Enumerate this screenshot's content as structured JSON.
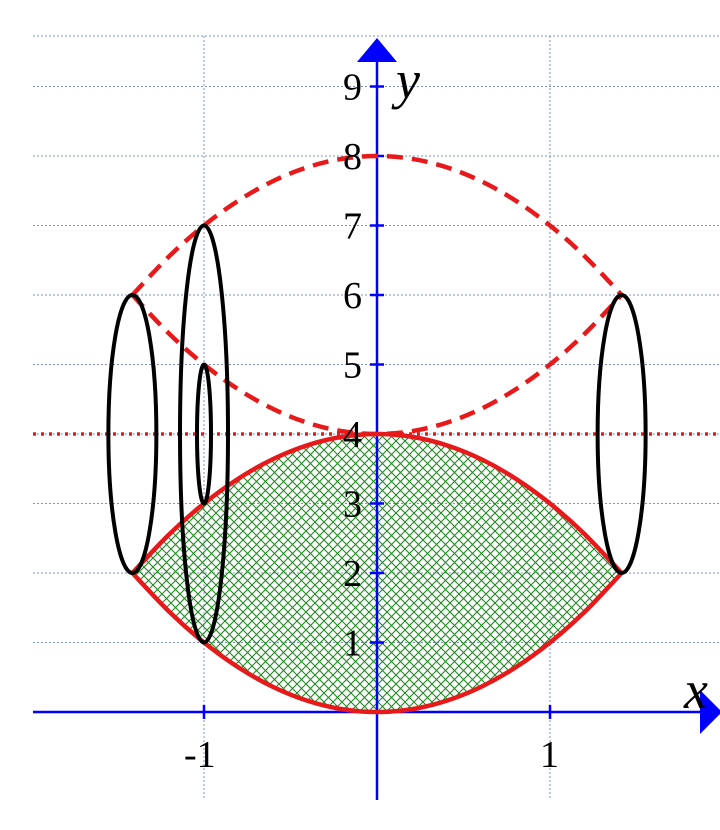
{
  "chart_data": {
    "type": "line",
    "xlabel": "x",
    "ylabel": "y",
    "xlim": [
      -2,
      2
    ],
    "ylim": [
      0,
      10
    ],
    "x_ticks": [
      "-1",
      "1"
    ],
    "y_ticks": [
      "1",
      "2",
      "3",
      "4",
      "5",
      "6",
      "7",
      "8",
      "9"
    ],
    "grid": true,
    "series": [
      {
        "role": "upper-boundary",
        "style": "solid",
        "color": "#e8191b",
        "x": [
          -1.414,
          -1.2,
          -1,
          -0.8,
          -0.6,
          -0.4,
          -0.2,
          0,
          0.2,
          0.4,
          0.6,
          0.8,
          1,
          1.2,
          1.414
        ],
        "y": [
          2,
          2.56,
          3,
          3.36,
          3.64,
          3.84,
          3.96,
          4,
          3.96,
          3.84,
          3.64,
          3.36,
          3,
          2.56,
          2
        ]
      },
      {
        "role": "lower-boundary",
        "style": "solid",
        "color": "#e8191b",
        "x": [
          -1.414,
          -1.2,
          -1,
          -0.8,
          -0.6,
          -0.4,
          -0.2,
          0,
          0.2,
          0.4,
          0.6,
          0.8,
          1,
          1.2,
          1.414
        ],
        "y": [
          2,
          1.44,
          1,
          0.64,
          0.36,
          0.16,
          0.04,
          0,
          0.04,
          0.16,
          0.36,
          0.64,
          1,
          1.44,
          2
        ]
      },
      {
        "role": "reflected-upper",
        "style": "dashed",
        "color": "#e8191b",
        "x": [
          -1.414,
          -1.2,
          -1,
          -0.8,
          -0.6,
          -0.4,
          -0.2,
          0,
          0.2,
          0.4,
          0.6,
          0.8,
          1,
          1.2,
          1.414
        ],
        "y": [
          6,
          6.56,
          7,
          7.36,
          7.64,
          7.84,
          7.96,
          8,
          7.96,
          7.84,
          7.64,
          7.36,
          7,
          6.56,
          6
        ]
      },
      {
        "role": "reflected-lower",
        "style": "dashed",
        "color": "#e8191b",
        "x": [
          -1.414,
          -1.2,
          -1,
          -0.8,
          -0.6,
          -0.4,
          -0.2,
          0,
          0.2,
          0.4,
          0.6,
          0.8,
          1,
          1.2,
          1.414
        ],
        "y": [
          6,
          5.44,
          5,
          4.64,
          4.36,
          4.16,
          4.04,
          4,
          4.04,
          4.16,
          4.36,
          4.64,
          5,
          5.44,
          6
        ]
      }
    ],
    "axis_of_rotation": {
      "y": 4,
      "style": "dotted",
      "color": "#e8191b"
    },
    "shaded_region": {
      "between": [
        "upper-boundary",
        "lower-boundary"
      ],
      "pattern": "crosshatch",
      "color": "#1f8a1f"
    },
    "cross_section_ellipses": [
      {
        "x": -1.414,
        "y_min": 2,
        "y_max": 6
      },
      {
        "x": -1,
        "y_min": 1,
        "y_max": 7
      },
      {
        "x": -1,
        "y_min": 3,
        "y_max": 5
      },
      {
        "x": 1.414,
        "y_min": 2,
        "y_max": 6
      }
    ]
  }
}
